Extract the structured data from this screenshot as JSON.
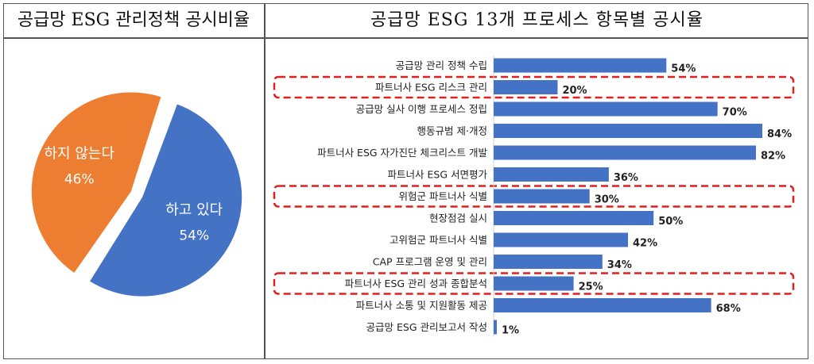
{
  "headers": {
    "left": "공급망 ESG 관리정책 공시비율",
    "right": "공급망 ESG 13개 프로세스 항목별 공시율"
  },
  "colors": {
    "blue": "#4472C4",
    "orange": "#ED7D31",
    "highlight": "#E02020"
  },
  "chart_data": [
    {
      "type": "pie",
      "slices": [
        {
          "label": "하고 있다",
          "value": 54,
          "value_label": "54%",
          "color": "#4472C4"
        },
        {
          "label": "하지 않는다",
          "value": 46,
          "value_label": "46%",
          "color": "#ED7D31"
        }
      ]
    },
    {
      "type": "bar",
      "orientation": "horizontal",
      "xlim": [
        0,
        84
      ],
      "categories": [
        "공급망 관리 정책 수립",
        "파트너사 ESG 리스크 관리",
        "공급망 실사 이행 프로세스 정립",
        "행동규범 제·개정",
        "파트너사 ESG 자가진단 체크리스트 개발",
        "파트너사 ESG 서면평가",
        "위험군 파트너사 식별",
        "현장점검 실시",
        "고위험군 파트너사 식별",
        "CAP 프로그램 운영 및 관리",
        "파트너사 ESG 관리 성과 종합분석",
        "파트너사 소통 및 지원활동 제공",
        "공급망 ESG 관리보고서 작성"
      ],
      "values": [
        54,
        20,
        70,
        84,
        82,
        36,
        30,
        50,
        42,
        34,
        25,
        68,
        1
      ],
      "value_labels": [
        "54%",
        "20%",
        "70%",
        "84%",
        "82%",
        "36%",
        "30%",
        "50%",
        "42%",
        "34%",
        "25%",
        "68%",
        "1%"
      ],
      "highlighted": [
        "파트너사 ESG 리스크 관리",
        "위험군 파트너사 식별",
        "파트너사 ESG 관리 성과 종합분석"
      ]
    }
  ]
}
